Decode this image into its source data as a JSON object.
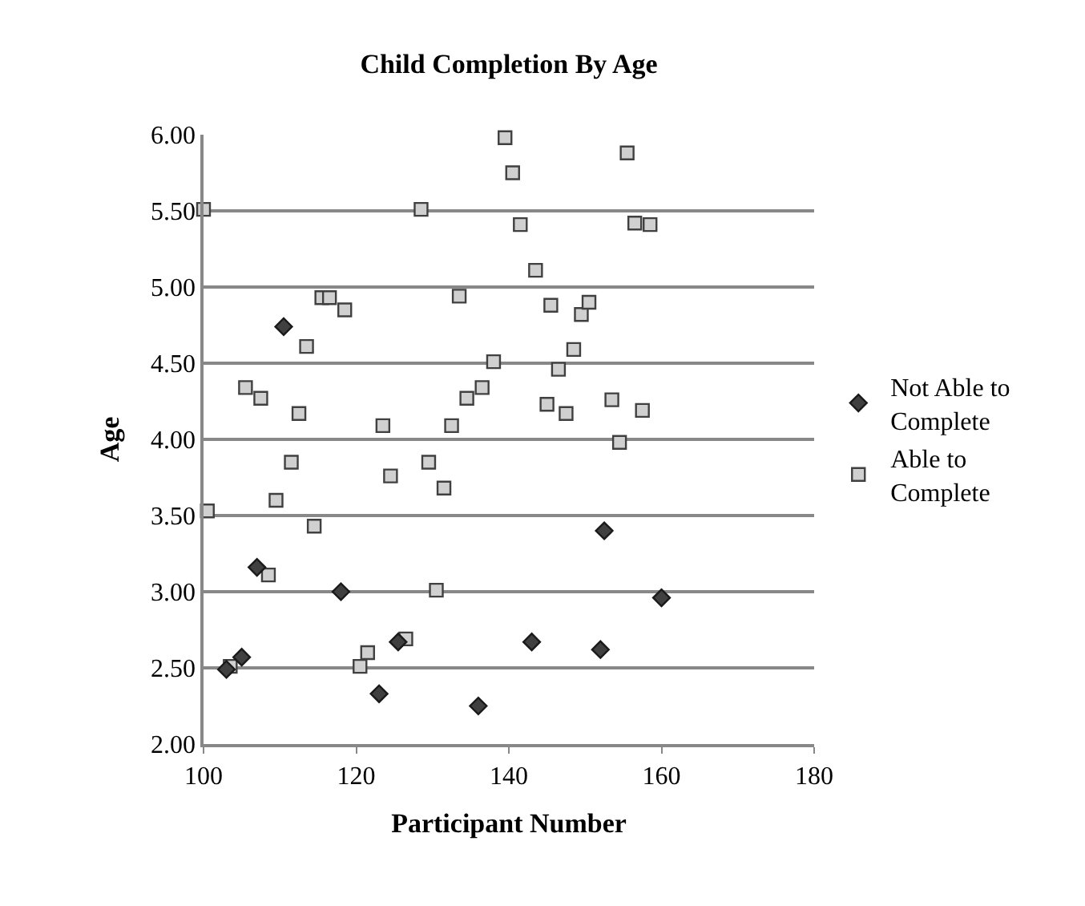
{
  "chart_data": {
    "type": "scatter",
    "title": "Child Completion By Age",
    "xlabel": "Participant Number",
    "ylabel": "Age",
    "xlim": [
      100,
      180
    ],
    "xticks": [
      100,
      120,
      140,
      160,
      180
    ],
    "ylim": [
      2,
      6
    ],
    "yticks": [
      {
        "value": 2,
        "label": "2.00"
      },
      {
        "value": 2.5,
        "label": "2.50"
      },
      {
        "value": 3,
        "label": "3.00"
      },
      {
        "value": 3.5,
        "label": "3.50"
      },
      {
        "value": 4,
        "label": "4.00"
      },
      {
        "value": 4.5,
        "label": "4.50"
      },
      {
        "value": 5,
        "label": "5.00"
      },
      {
        "value": 5.5,
        "label": "5.50"
      },
      {
        "value": 6,
        "label": "6.00"
      }
    ],
    "grid": "y",
    "legend": "right",
    "series": [
      {
        "name": "Not Able to Complete",
        "color": "#404040",
        "marker": "diamond",
        "x": [
          103,
          105,
          107,
          110.5,
          118,
          123,
          125.5,
          136,
          143,
          152,
          152.5,
          160
        ],
        "values": [
          2.49,
          2.57,
          3.16,
          4.74,
          3.0,
          2.33,
          2.67,
          2.25,
          2.67,
          2.62,
          3.4,
          2.96
        ]
      },
      {
        "name": "Able to Complete",
        "color": "#d0d0d0",
        "marker": "square",
        "x": [
          100,
          128.5,
          115.5,
          116.5,
          118.5,
          113.5,
          133.5,
          138,
          105.5,
          107.5,
          112.5,
          134.5,
          136.5,
          139.5,
          155.5,
          140.5,
          141.5,
          156.5,
          158.5,
          143.5,
          145.5,
          149.5,
          150.5,
          148.5,
          146.5,
          145,
          147.5,
          153.5,
          157.5,
          154.5,
          123.5,
          132.5,
          111.5,
          124.5,
          129.5,
          131.5,
          100.5,
          109.5,
          114.5,
          108.5,
          130.5,
          103.5,
          120.5,
          121.5,
          126.5
        ],
        "values": [
          5.51,
          5.51,
          4.93,
          4.93,
          4.85,
          4.61,
          4.94,
          4.51,
          4.34,
          4.27,
          4.17,
          4.27,
          4.34,
          5.98,
          5.88,
          5.75,
          5.41,
          5.42,
          5.41,
          5.11,
          4.88,
          4.82,
          4.9,
          4.59,
          4.46,
          4.23,
          4.17,
          4.26,
          4.19,
          3.98,
          4.09,
          4.09,
          3.85,
          3.76,
          3.85,
          3.68,
          3.53,
          3.6,
          3.43,
          3.11,
          3.01,
          2.51,
          2.51,
          2.6,
          2.69
        ]
      }
    ]
  }
}
